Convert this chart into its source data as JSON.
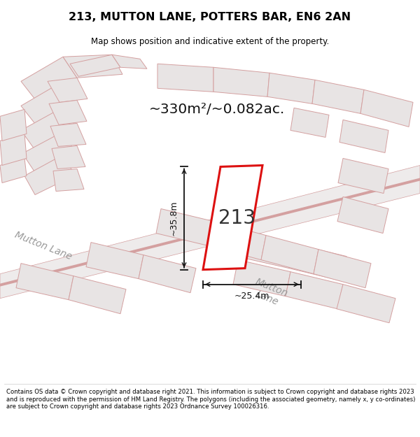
{
  "title": "213, MUTTON LANE, POTTERS BAR, EN6 2AN",
  "subtitle": "Map shows position and indicative extent of the property.",
  "area_text": "~330m²/~0.082ac.",
  "plot_number": "213",
  "dim_width": "~25.4m",
  "dim_height": "~35.8m",
  "footer": "Contains OS data © Crown copyright and database right 2021. This information is subject to Crown copyright and database rights 2023 and is reproduced with the permission of HM Land Registry. The polygons (including the associated geometry, namely x, y co-ordinates) are subject to Crown copyright and database rights 2023 Ordnance Survey 100026316.",
  "map_bg": "#f7f5f5",
  "building_fill": "#e8e4e4",
  "building_edge": "#d4a0a0",
  "highlight_fill": "#ffffff",
  "highlight_edge": "#dd1111",
  "road_fill": "#f0eaea",
  "road_edge": "#d4a0a0",
  "title_color": "#000000",
  "footer_color": "#000000",
  "road_label_color": "#aaaaaa",
  "dim_color": "#111111",
  "area_text_color": "#111111",
  "plot_label_color": "#333333"
}
